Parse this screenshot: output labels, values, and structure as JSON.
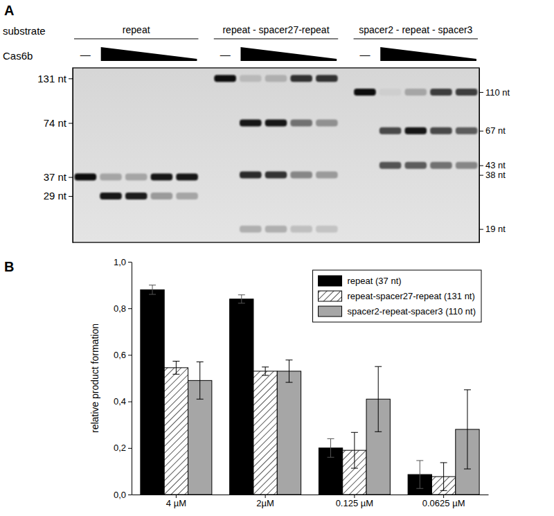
{
  "chart_data": [
    {
      "type": "gel",
      "panel_label": "A",
      "row_label": "substrate",
      "lane_label": "Cas6b",
      "log": "y",
      "ylim": [
        16,
        150
      ],
      "yticks": [
        {
          "value": 131,
          "label": "131 nt"
        },
        {
          "value": 74,
          "label": "74 nt"
        },
        {
          "value": 37,
          "label": "37 nt"
        },
        {
          "value": 29,
          "label": "29 nt"
        }
      ],
      "y2lim": [
        16,
        150
      ],
      "y2ticks": [
        {
          "value": 110,
          "label": "110 nt"
        },
        {
          "value": 67,
          "label": "67 nt"
        },
        {
          "value": 43,
          "label": "43 nt"
        },
        {
          "value": 38,
          "label": "38 nt"
        },
        {
          "value": 19,
          "label": "19 nt"
        }
      ],
      "groups": [
        {
          "name": "repeat",
          "control_label": "—",
          "lanes": [
            {
              "bands": [
                {
                  "size": 37,
                  "intensity": 1.0
                }
              ]
            },
            {
              "bands": [
                {
                  "size": 37,
                  "intensity": 0.25
                },
                {
                  "size": 29,
                  "intensity": 0.95
                }
              ]
            },
            {
              "bands": [
                {
                  "size": 37,
                  "intensity": 0.25
                },
                {
                  "size": 29,
                  "intensity": 0.9
                }
              ]
            },
            {
              "bands": [
                {
                  "size": 37,
                  "intensity": 0.95
                },
                {
                  "size": 29,
                  "intensity": 0.3
                }
              ]
            },
            {
              "bands": [
                {
                  "size": 37,
                  "intensity": 0.95
                },
                {
                  "size": 29,
                  "intensity": 0.25
                }
              ]
            }
          ]
        },
        {
          "name": "repeat - spacer27-repeat",
          "control_label": "—",
          "lanes": [
            {
              "bands": [
                {
                  "size": 131,
                  "intensity": 1.0
                }
              ]
            },
            {
              "bands": [
                {
                  "size": 131,
                  "intensity": 0.15
                },
                {
                  "size": 74,
                  "intensity": 0.95
                },
                {
                  "size": 38,
                  "intensity": 0.85
                },
                {
                  "size": 19,
                  "intensity": 0.2
                }
              ]
            },
            {
              "bands": [
                {
                  "size": 131,
                  "intensity": 0.2
                },
                {
                  "size": 74,
                  "intensity": 0.95
                },
                {
                  "size": 38,
                  "intensity": 0.8
                },
                {
                  "size": 19,
                  "intensity": 0.2
                }
              ]
            },
            {
              "bands": [
                {
                  "size": 131,
                  "intensity": 0.8
                },
                {
                  "size": 74,
                  "intensity": 0.5
                },
                {
                  "size": 38,
                  "intensity": 0.4
                },
                {
                  "size": 19,
                  "intensity": 0.12
                }
              ]
            },
            {
              "bands": [
                {
                  "size": 131,
                  "intensity": 0.8
                },
                {
                  "size": 74,
                  "intensity": 0.35
                },
                {
                  "size": 38,
                  "intensity": 0.3
                },
                {
                  "size": 19,
                  "intensity": 0.1
                }
              ]
            }
          ]
        },
        {
          "name": "spacer2 - repeat - spacer3",
          "control_label": "—",
          "lanes": [
            {
              "bands": [
                {
                  "size": 110,
                  "intensity": 1.0
                }
              ]
            },
            {
              "bands": [
                {
                  "size": 110,
                  "intensity": 0.05
                },
                {
                  "size": 67,
                  "intensity": 0.7
                },
                {
                  "size": 43,
                  "intensity": 0.65
                }
              ]
            },
            {
              "bands": [
                {
                  "size": 110,
                  "intensity": 0.25
                },
                {
                  "size": 67,
                  "intensity": 0.95
                },
                {
                  "size": 43,
                  "intensity": 0.6
                }
              ]
            },
            {
              "bands": [
                {
                  "size": 110,
                  "intensity": 0.75
                },
                {
                  "size": 67,
                  "intensity": 0.7
                },
                {
                  "size": 43,
                  "intensity": 0.5
                }
              ]
            },
            {
              "bands": [
                {
                  "size": 110,
                  "intensity": 0.75
                },
                {
                  "size": 67,
                  "intensity": 0.6
                },
                {
                  "size": 43,
                  "intensity": 0.4
                }
              ]
            }
          ]
        }
      ]
    },
    {
      "type": "bar",
      "panel_label": "B",
      "y_label": "relative product formation",
      "categories": [
        "4 µM",
        "2µM",
        "0.125 µM",
        "0.0625 µM"
      ],
      "series": [
        {
          "name": "repeat (37 nt)",
          "color": "#000000",
          "values": [
            0.88,
            0.84,
            0.2,
            0.086
          ],
          "errors": [
            0.02,
            0.018,
            0.04,
            0.06
          ]
        },
        {
          "name": "repeat-spacer27-repeat (131 nt)",
          "color": "#ffffff",
          "values": [
            0.545,
            0.53,
            0.19,
            0.077
          ],
          "errors": [
            0.028,
            0.018,
            0.077,
            0.06
          ]
        },
        {
          "name": "spacer2-repeat-spacer3 (110 nt)",
          "color": "#a6a6a6",
          "values": [
            0.49,
            0.53,
            0.41,
            0.28
          ],
          "errors": [
            0.08,
            0.048,
            0.14,
            0.17
          ]
        }
      ],
      "ylim": [
        0,
        1.0
      ],
      "yticks": [
        {
          "value": 0,
          "label": "0,0"
        },
        {
          "value": 0.2,
          "label": "0,2"
        },
        {
          "value": 0.4,
          "label": "0,4"
        },
        {
          "value": 0.6,
          "label": "0,6"
        },
        {
          "value": 0.8,
          "label": "0,8"
        },
        {
          "value": 1.0,
          "label": "1,0"
        }
      ],
      "legend": "upper right"
    }
  ]
}
